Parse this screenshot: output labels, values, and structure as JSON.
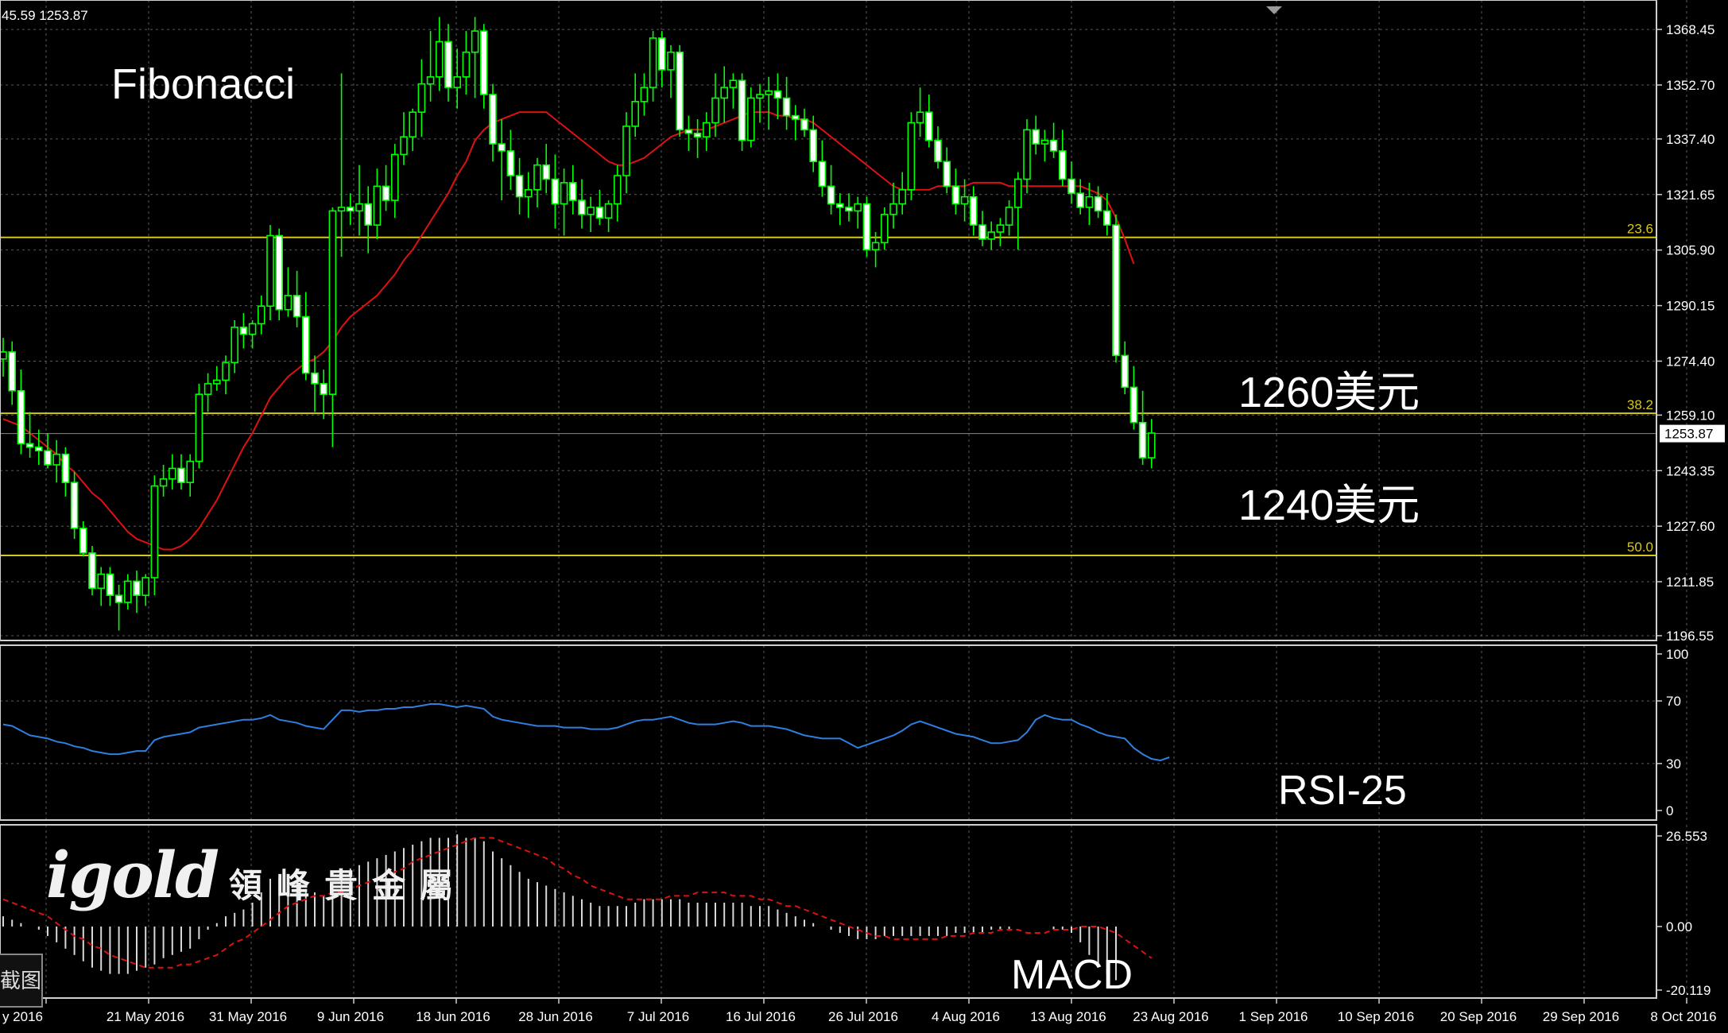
{
  "header": {
    "ohlc": "45.59 1253.87"
  },
  "annotations": {
    "title": "Fibonacci",
    "level_1260": "1260美元",
    "level_1240": "1240美元",
    "rsi": "RSI-25",
    "macd": "MACD"
  },
  "watermark": {
    "brand": "igold",
    "cn": "領峰貴金屬"
  },
  "side_button": "截图",
  "colors": {
    "background": "#000000",
    "grid": "#5a5a5a",
    "candle": "#00ff00",
    "ma": "#dd1111",
    "fib": "#d4c81e",
    "rsi": "#2e7fe0",
    "macd_hist": "#d8d8d8",
    "signal": "#dd1111",
    "text": "#ffffff"
  },
  "chart_data": [
    {
      "type": "candlestick",
      "instrument": "XAUUSD daily",
      "ylim": [
        1196.55,
        1375.0
      ],
      "y_ticks": [
        "1368.45",
        "1352.70",
        "1337.40",
        "1321.65",
        "1305.90",
        "1290.15",
        "1274.40",
        "1259.10",
        "1243.35",
        "1227.60",
        "1211.85",
        "1196.55"
      ],
      "x_ticks": [
        "y 2016",
        "21 May 2016",
        "31 May 2016",
        "9 Jun 2016",
        "18 Jun 2016",
        "28 Jun 2016",
        "7 Jul 2016",
        "16 Jul 2016",
        "26 Jul 2016",
        "4 Aug 2016",
        "13 Aug 2016",
        "23 Aug 2016",
        "1 Sep 2016",
        "10 Sep 2016",
        "20 Sep 2016",
        "29 Sep 2016",
        "8 Oct 2016"
      ],
      "last_price": "1253.87",
      "fib_levels": [
        {
          "label": "23.6",
          "value": 1309.5
        },
        {
          "label": "38.2",
          "value": 1259.6
        },
        {
          "label": "50.0",
          "value": 1219.3
        }
      ],
      "ohlc": [
        [
          1275,
          1281,
          1270,
          1277
        ],
        [
          1277,
          1280,
          1262,
          1266
        ],
        [
          1266,
          1272,
          1248,
          1251
        ],
        [
          1251,
          1260,
          1247,
          1250
        ],
        [
          1250,
          1255,
          1245,
          1249
        ],
        [
          1249,
          1254,
          1244,
          1245
        ],
        [
          1245,
          1252,
          1240,
          1248
        ],
        [
          1248,
          1250,
          1236,
          1240
        ],
        [
          1240,
          1243,
          1224,
          1227
        ],
        [
          1227,
          1229,
          1219,
          1220
        ],
        [
          1220,
          1222,
          1208,
          1210
        ],
        [
          1210,
          1216,
          1205,
          1214
        ],
        [
          1214,
          1216,
          1205,
          1208
        ],
        [
          1208,
          1211,
          1198,
          1206
        ],
        [
          1206,
          1214,
          1204,
          1212
        ],
        [
          1212,
          1215,
          1203,
          1208
        ],
        [
          1208,
          1214,
          1205,
          1213
        ],
        [
          1213,
          1242,
          1208,
          1239
        ],
        [
          1239,
          1245,
          1236,
          1241
        ],
        [
          1241,
          1248,
          1238,
          1244
        ],
        [
          1244,
          1248,
          1238,
          1240
        ],
        [
          1240,
          1248,
          1236,
          1246
        ],
        [
          1246,
          1268,
          1244,
          1265
        ],
        [
          1265,
          1271,
          1260,
          1268
        ],
        [
          1268,
          1273,
          1266,
          1269
        ],
        [
          1269,
          1276,
          1265,
          1274
        ],
        [
          1274,
          1286,
          1271,
          1284
        ],
        [
          1284,
          1288,
          1278,
          1282
        ],
        [
          1282,
          1286,
          1278,
          1285
        ],
        [
          1285,
          1293,
          1282,
          1290
        ],
        [
          1290,
          1313,
          1286,
          1310
        ],
        [
          1310,
          1312,
          1286,
          1289
        ],
        [
          1289,
          1301,
          1287,
          1293
        ],
        [
          1293,
          1300,
          1284,
          1287
        ],
        [
          1287,
          1294,
          1269,
          1271
        ],
        [
          1271,
          1276,
          1260,
          1268
        ],
        [
          1268,
          1272,
          1258,
          1265
        ],
        [
          1265,
          1318,
          1250,
          1317
        ],
        [
          1317,
          1356,
          1304,
          1318
        ],
        [
          1318,
          1322,
          1313,
          1317
        ],
        [
          1317,
          1330,
          1310,
          1319
        ],
        [
          1319,
          1324,
          1305,
          1313
        ],
        [
          1313,
          1329,
          1309,
          1324
        ],
        [
          1324,
          1330,
          1317,
          1320
        ],
        [
          1320,
          1336,
          1315,
          1333
        ],
        [
          1333,
          1345,
          1330,
          1338
        ],
        [
          1338,
          1346,
          1334,
          1345
        ],
        [
          1345,
          1360,
          1338,
          1353
        ],
        [
          1353,
          1368,
          1348,
          1355
        ],
        [
          1355,
          1372,
          1351,
          1365
        ],
        [
          1365,
          1370,
          1348,
          1352
        ],
        [
          1352,
          1363,
          1346,
          1355
        ],
        [
          1355,
          1368,
          1350,
          1362
        ],
        [
          1362,
          1372,
          1349,
          1368
        ],
        [
          1368,
          1370,
          1346,
          1350
        ],
        [
          1350,
          1353,
          1331,
          1336
        ],
        [
          1336,
          1343,
          1320,
          1334
        ],
        [
          1334,
          1340,
          1323,
          1327
        ],
        [
          1327,
          1332,
          1316,
          1321
        ],
        [
          1321,
          1328,
          1315,
          1323
        ],
        [
          1323,
          1332,
          1318,
          1330
        ],
        [
          1330,
          1336,
          1322,
          1326
        ],
        [
          1326,
          1333,
          1312,
          1319
        ],
        [
          1319,
          1329,
          1310,
          1325
        ],
        [
          1325,
          1330,
          1316,
          1320
        ],
        [
          1320,
          1326,
          1312,
          1316
        ],
        [
          1316,
          1321,
          1311,
          1318
        ],
        [
          1318,
          1323,
          1313,
          1315
        ],
        [
          1315,
          1320,
          1311,
          1319
        ],
        [
          1319,
          1330,
          1314,
          1327
        ],
        [
          1327,
          1345,
          1322,
          1341
        ],
        [
          1341,
          1356,
          1338,
          1348
        ],
        [
          1348,
          1356,
          1344,
          1352
        ],
        [
          1352,
          1368,
          1348,
          1366
        ],
        [
          1366,
          1368,
          1352,
          1357
        ],
        [
          1357,
          1364,
          1349,
          1362
        ],
        [
          1362,
          1364,
          1338,
          1340
        ],
        [
          1340,
          1344,
          1334,
          1339
        ],
        [
          1339,
          1343,
          1332,
          1338
        ],
        [
          1338,
          1345,
          1334,
          1342
        ],
        [
          1342,
          1356,
          1338,
          1349
        ],
        [
          1349,
          1358,
          1342,
          1352
        ],
        [
          1352,
          1356,
          1346,
          1354
        ],
        [
          1354,
          1356,
          1334,
          1337
        ],
        [
          1337,
          1352,
          1335,
          1349
        ],
        [
          1349,
          1353,
          1342,
          1350
        ],
        [
          1350,
          1355,
          1340,
          1351
        ],
        [
          1351,
          1356,
          1343,
          1349
        ],
        [
          1349,
          1355,
          1340,
          1344
        ],
        [
          1344,
          1347,
          1337,
          1343
        ],
        [
          1343,
          1346,
          1338,
          1340
        ],
        [
          1340,
          1344,
          1328,
          1331
        ],
        [
          1331,
          1337,
          1321,
          1324
        ],
        [
          1324,
          1330,
          1316,
          1319
        ],
        [
          1319,
          1322,
          1313,
          1318
        ],
        [
          1318,
          1322,
          1314,
          1317
        ],
        [
          1317,
          1321,
          1312,
          1319
        ],
        [
          1319,
          1321,
          1304,
          1306
        ],
        [
          1306,
          1311,
          1301,
          1308
        ],
        [
          1308,
          1318,
          1306,
          1316
        ],
        [
          1316,
          1325,
          1312,
          1319
        ],
        [
          1319,
          1328,
          1316,
          1323
        ],
        [
          1323,
          1345,
          1320,
          1342
        ],
        [
          1342,
          1352,
          1338,
          1345
        ],
        [
          1345,
          1350,
          1335,
          1337
        ],
        [
          1337,
          1341,
          1329,
          1331
        ],
        [
          1331,
          1335,
          1322,
          1324
        ],
        [
          1324,
          1329,
          1316,
          1319
        ],
        [
          1319,
          1326,
          1314,
          1321
        ],
        [
          1321,
          1324,
          1310,
          1313
        ],
        [
          1313,
          1317,
          1307,
          1309
        ],
        [
          1309,
          1314,
          1306,
          1311
        ],
        [
          1311,
          1315,
          1307,
          1313
        ],
        [
          1313,
          1320,
          1310,
          1318
        ],
        [
          1318,
          1328,
          1306,
          1326
        ],
        [
          1326,
          1343,
          1322,
          1340
        ],
        [
          1340,
          1344,
          1333,
          1336
        ],
        [
          1336,
          1340,
          1331,
          1337
        ],
        [
          1337,
          1342,
          1332,
          1334
        ],
        [
          1334,
          1340,
          1324,
          1326
        ],
        [
          1326,
          1331,
          1319,
          1322
        ],
        [
          1322,
          1326,
          1316,
          1318
        ],
        [
          1318,
          1325,
          1313,
          1321
        ],
        [
          1321,
          1324,
          1315,
          1317
        ],
        [
          1317,
          1322,
          1310,
          1313
        ],
        [
          1313,
          1316,
          1274,
          1276
        ],
        [
          1276,
          1280,
          1265,
          1267
        ],
        [
          1267,
          1273,
          1255,
          1257
        ],
        [
          1257,
          1266,
          1245,
          1247
        ],
        [
          1247,
          1258,
          1244,
          1254
        ]
      ],
      "ma": [
        1258,
        1257,
        1256,
        1254,
        1252,
        1250,
        1248,
        1245,
        1243,
        1240,
        1237,
        1235,
        1232,
        1229,
        1226,
        1224,
        1223,
        1222,
        1221,
        1221,
        1222,
        1224,
        1227,
        1231,
        1235,
        1240,
        1245,
        1250,
        1254,
        1259,
        1264,
        1267,
        1270,
        1272,
        1274,
        1275,
        1277,
        1280,
        1284,
        1287,
        1289,
        1291,
        1293,
        1296,
        1299,
        1303,
        1306,
        1310,
        1314,
        1318,
        1322,
        1327,
        1331,
        1337,
        1340,
        1342,
        1343,
        1344,
        1345,
        1345,
        1345,
        1345,
        1343,
        1341,
        1339,
        1337,
        1335,
        1333,
        1331,
        1330,
        1330,
        1331,
        1332,
        1334,
        1336,
        1338,
        1339,
        1340,
        1340,
        1340,
        1341,
        1342,
        1343,
        1344,
        1345,
        1345,
        1345,
        1344,
        1344,
        1343,
        1343,
        1342,
        1340,
        1338,
        1336,
        1334,
        1332,
        1330,
        1328,
        1326,
        1324,
        1323,
        1323,
        1323,
        1323,
        1324,
        1324,
        1324,
        1324,
        1325,
        1325,
        1325,
        1325,
        1324,
        1324,
        1324,
        1324,
        1324,
        1324,
        1324,
        1324,
        1324,
        1323,
        1322,
        1320,
        1315,
        1309,
        1302
      ],
      "fib_label_values": [
        "23.6",
        "38.2",
        "50.0"
      ]
    },
    {
      "type": "line",
      "name": "RSI-25",
      "ylim": [
        0,
        100
      ],
      "y_ticks": [
        "100",
        "70",
        "30",
        "0"
      ],
      "values": [
        55,
        54,
        51,
        48,
        47,
        46,
        44,
        43,
        41,
        40,
        38,
        37,
        36,
        36,
        37,
        38,
        38,
        45,
        47,
        48,
        49,
        50,
        53,
        54,
        55,
        56,
        57,
        58,
        58,
        59,
        61,
        58,
        57,
        56,
        54,
        53,
        52,
        58,
        64,
        64,
        63,
        64,
        64,
        65,
        65,
        66,
        66,
        67,
        68,
        68,
        67,
        66,
        67,
        66,
        65,
        60,
        58,
        57,
        56,
        55,
        54,
        54,
        54,
        53,
        53,
        53,
        52,
        52,
        52,
        53,
        55,
        57,
        58,
        58,
        59,
        60,
        58,
        56,
        55,
        55,
        55,
        56,
        57,
        56,
        54,
        54,
        54,
        53,
        52,
        50,
        48,
        47,
        46,
        46,
        46,
        43,
        40,
        42,
        44,
        46,
        48,
        51,
        55,
        57,
        55,
        53,
        51,
        49,
        48,
        47,
        45,
        43,
        43,
        44,
        45,
        50,
        58,
        61,
        59,
        58,
        58,
        55,
        53,
        50,
        48,
        47,
        46,
        40,
        36,
        33,
        32,
        34
      ]
    },
    {
      "type": "bar",
      "name": "MACD",
      "ylim": [
        -24.0,
        29.0
      ],
      "y_ticks": [
        "26.553",
        "0.00",
        "-20.119"
      ],
      "histogram": [
        3,
        2,
        1,
        0,
        -1,
        -3,
        -5,
        -7,
        -9,
        -11,
        -13,
        -14,
        -15,
        -15,
        -15,
        -14,
        -13,
        -12,
        -10,
        -9,
        -8,
        -7,
        -4,
        -1,
        1,
        3,
        4,
        5,
        7,
        10,
        14,
        14,
        14,
        13,
        11,
        10,
        9,
        12,
        16,
        17,
        18,
        19,
        20,
        21,
        22,
        23,
        24,
        25,
        26,
        26,
        26,
        27,
        26,
        26,
        25,
        22,
        20,
        18,
        16,
        14,
        13,
        12,
        11,
        10,
        9,
        8,
        7,
        6,
        6,
        6,
        6,
        7,
        8,
        8,
        8,
        8,
        8,
        7,
        7,
        7,
        7,
        7,
        7,
        7,
        6,
        6,
        6,
        5,
        4,
        3,
        2,
        1,
        0,
        -1,
        -2,
        -3,
        -4,
        -4,
        -4,
        -3,
        -3,
        -3,
        -3,
        -3,
        -3,
        -3,
        -3,
        -2,
        -2,
        -2,
        -2,
        -1,
        -1,
        -1,
        0,
        0,
        0,
        0,
        -1,
        -1,
        -2,
        -5,
        -9,
        -12,
        -15,
        -17
      ],
      "signal": [
        8,
        7,
        6,
        5,
        4,
        3,
        1,
        -1,
        -3,
        -4,
        -6,
        -7,
        -9,
        -10,
        -11,
        -12,
        -13,
        -13,
        -13,
        -13,
        -12,
        -12,
        -11,
        -10,
        -9,
        -7,
        -5,
        -4,
        -2,
        0,
        2,
        4,
        6,
        7,
        8,
        9,
        9,
        10,
        10,
        11,
        12,
        13,
        14,
        15,
        16,
        17,
        19,
        20,
        21,
        22,
        23,
        24,
        25,
        26,
        26,
        26,
        25,
        24,
        23,
        22,
        21,
        20,
        18,
        17,
        15,
        14,
        12,
        11,
        10,
        9,
        8,
        8,
        8,
        8,
        8,
        9,
        9,
        9,
        10,
        10,
        10,
        10,
        9,
        9,
        9,
        8,
        8,
        7,
        6,
        6,
        5,
        4,
        3,
        2,
        1,
        0,
        -1,
        -2,
        -3,
        -3,
        -4,
        -4,
        -4,
        -4,
        -4,
        -4,
        -3,
        -3,
        -3,
        -2,
        -2,
        -2,
        -1,
        -1,
        -1,
        -2,
        -2,
        -2,
        -1,
        -1,
        -1,
        0,
        0,
        0,
        -1,
        -2,
        -4,
        -6,
        -8,
        -10
      ]
    }
  ]
}
